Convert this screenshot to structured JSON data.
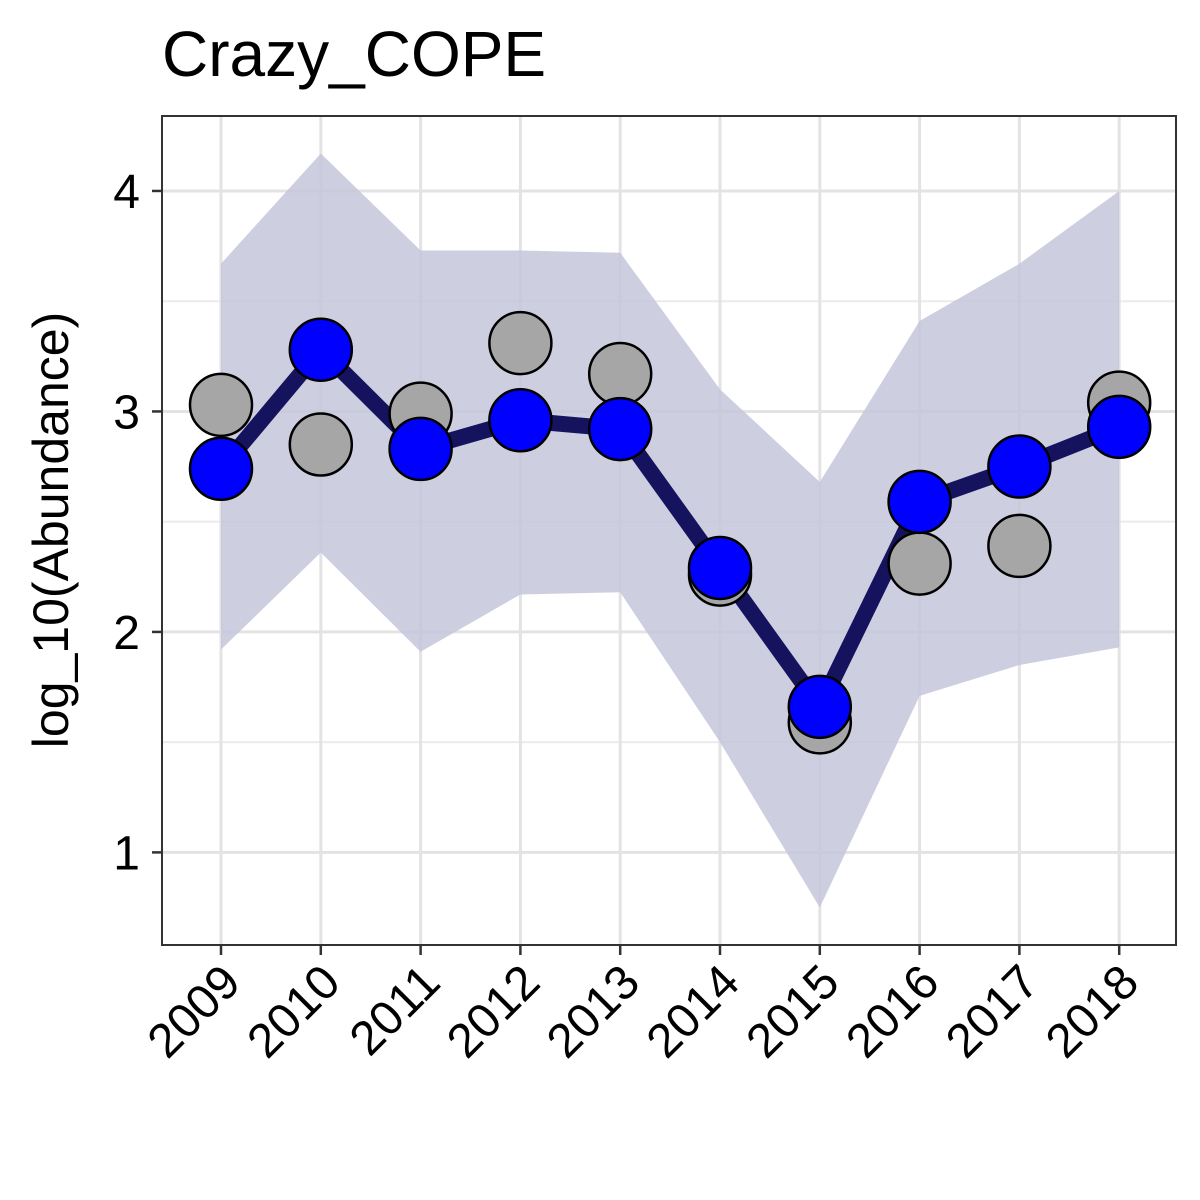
{
  "chart_data": {
    "type": "line",
    "title": "Crazy_COPE",
    "xlabel": "",
    "ylabel": "log_10(Abundance)",
    "x": [
      "2009",
      "2010",
      "2011",
      "2012",
      "2013",
      "2014",
      "2015",
      "2016",
      "2017",
      "2018"
    ],
    "ylim": [
      0.58,
      4.34
    ],
    "yticks": [
      1,
      2,
      3,
      4
    ],
    "grid": true,
    "legend": "none",
    "series": [
      {
        "kind": "confidence_band",
        "lower": [
          1.92,
          2.36,
          1.91,
          2.17,
          2.18,
          1.5,
          0.75,
          1.71,
          1.85,
          1.93
        ],
        "upper": [
          3.67,
          4.17,
          3.73,
          3.73,
          3.72,
          3.1,
          2.68,
          3.41,
          3.67,
          4.0
        ],
        "color": "#c6c6dc"
      },
      {
        "kind": "estimate_line",
        "values": [
          2.74,
          3.28,
          2.83,
          2.96,
          2.92,
          2.29,
          1.66,
          2.59,
          2.75,
          2.93
        ],
        "color": "#0000ff",
        "line_color": "#15135e"
      },
      {
        "kind": "observed_points",
        "values": [
          3.03,
          2.85,
          2.99,
          3.31,
          3.17,
          2.26,
          1.59,
          2.31,
          2.39,
          3.04
        ],
        "color": "#a6a6a6"
      }
    ]
  }
}
